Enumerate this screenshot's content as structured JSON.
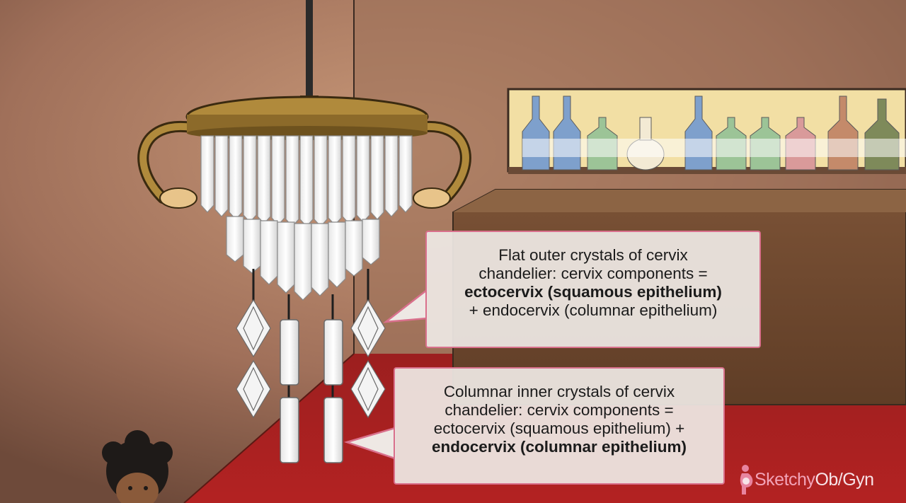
{
  "callouts": [
    {
      "lines": [
        {
          "text": "Flat outer crystals of cervix",
          "bold": false
        },
        {
          "text": "chandelier: cervix components =",
          "bold": false
        },
        {
          "text": "ectocervix (squamous epithelium)",
          "bold": true
        },
        {
          "text": "+ endocervix (columnar epithelium)",
          "bold": false
        }
      ]
    },
    {
      "lines": [
        {
          "text": "Columnar inner crystals of cervix",
          "bold": false
        },
        {
          "text": "chandelier: cervix components =",
          "bold": false
        },
        {
          "text": "ectocervix (squamous epithelium) +",
          "bold": false
        },
        {
          "text": "endocervix (columnar epithelium)",
          "bold": true
        }
      ]
    }
  ],
  "brand": {
    "part1": "Sketchy",
    "part2": "Ob/Gyn",
    "icon": "pregnant-figure-icon"
  },
  "colors": {
    "callout_border": "#d9708c",
    "callout_fill": "#eee8e4",
    "floor": "#a81c1c",
    "wall": "#8a5f48"
  }
}
